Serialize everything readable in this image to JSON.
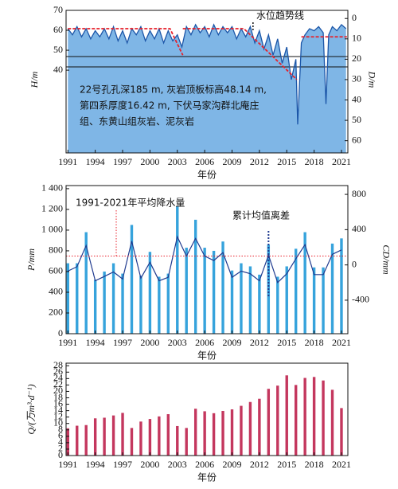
{
  "chart_data": [
    {
      "type": "area",
      "xlabel": "年份",
      "ylabel": "H/m",
      "y2label": "D/m",
      "xlim": [
        1990.8,
        2021.7
      ],
      "xticks": [
        1991,
        1994,
        1997,
        2000,
        2003,
        2006,
        2009,
        2012,
        2015,
        2018,
        2021
      ],
      "ylim": [
        -1.5,
        70
      ],
      "yticks": [
        40,
        50,
        60,
        70
      ],
      "y2lim": [
        66,
        -4
      ],
      "y2ticks": [
        0,
        10,
        20,
        30,
        40,
        50,
        60
      ],
      "fill": "#7fb6e6",
      "series": [
        {
          "color": "#1c56a8",
          "axis": "y2",
          "x": [
            1991,
            1991.5,
            1992,
            1992.5,
            1993,
            1993.5,
            1994,
            1994.5,
            1995,
            1995.5,
            1996,
            1996.5,
            1997,
            1997.5,
            1998,
            1998.5,
            1999,
            1999.5,
            2000,
            2000.5,
            2001,
            2001.5,
            2002,
            2002.5,
            2003,
            2003.5,
            2004,
            2004.5,
            2005,
            2005.5,
            2006,
            2006.5,
            2007,
            2007.5,
            2008,
            2008.5,
            2009,
            2009.5,
            2010,
            2010.5,
            2011,
            2011.5,
            2012,
            2012.5,
            2013,
            2013.5,
            2014,
            2014.5,
            2015,
            2015.5,
            2016,
            2016.2,
            2016.6,
            2017,
            2017.5,
            2018,
            2018.5,
            2019,
            2019.3,
            2019.6,
            2020,
            2020.5,
            2021,
            2021.5
          ],
          "values": [
            5,
            8,
            4,
            9,
            5,
            10,
            6,
            9,
            5,
            10,
            4,
            11,
            6,
            12,
            5,
            8,
            4,
            11,
            6,
            10,
            5,
            12,
            6,
            11,
            8,
            14,
            4,
            8,
            3,
            7,
            4,
            9,
            3,
            8,
            4,
            7,
            4,
            10,
            5,
            9,
            4,
            12,
            6,
            15,
            8,
            18,
            10,
            22,
            14,
            30,
            20,
            52,
            12,
            8,
            5,
            6,
            4,
            7,
            42,
            8,
            4,
            6,
            3,
            5
          ]
        },
        {
          "color": "#e8202a",
          "axis": "y2",
          "dash": true,
          "x": [
            1991,
            2002.2,
            2003.6,
            null,
            2003.6,
            2010.3,
            2016.1,
            null,
            2016.6,
            2021.6
          ],
          "values": [
            5,
            5,
            18,
            null,
            5,
            5,
            30,
            null,
            9,
            9
          ]
        }
      ],
      "annotations": [
        "水位趋势线",
        "22号孔孔深185 m, 灰岩顶板标高48.14 m,",
        "第四系厚度16.42 m, 下伏马家沟群北庵庄",
        "组、东黄山组灰岩、泥灰岩"
      ]
    },
    {
      "type": "bar",
      "xlabel": "年份",
      "ylabel": "P/mm",
      "y2label": "CD/mm",
      "xlim": [
        1990.8,
        2021.7
      ],
      "xticks": [
        1991,
        1994,
        1997,
        2000,
        2003,
        2006,
        2009,
        2012,
        2015,
        2018,
        2021
      ],
      "ylim": [
        0,
        1430
      ],
      "yticks": [
        0,
        200,
        400,
        600,
        800,
        {
          "value": 1000,
          "label": "1 000"
        },
        {
          "value": 1200,
          "label": "1 200"
        },
        {
          "value": 1400,
          "label": "1 400"
        }
      ],
      "y2lim": [
        -780,
        900
      ],
      "y2ticks": [
        -400,
        0,
        400,
        800
      ],
      "mean_line": {
        "value": 750,
        "color": "#e8202a"
      },
      "x": [
        1991,
        1992,
        1993,
        1994,
        1995,
        1996,
        1997,
        1998,
        1999,
        2000,
        2001,
        2002,
        2003,
        2004,
        2005,
        2006,
        2007,
        2008,
        2009,
        2010,
        2011,
        2012,
        2013,
        2014,
        2015,
        2016,
        2017,
        2018,
        2019,
        2020,
        2021
      ],
      "series": [
        {
          "color": "#36a3dc",
          "values": [
            680,
            680,
            980,
            520,
            600,
            680,
            580,
            1050,
            560,
            790,
            550,
            580,
            1230,
            830,
            1100,
            830,
            800,
            890,
            610,
            680,
            650,
            570,
            860,
            550,
            650,
            820,
            980,
            640,
            640,
            870,
            920
          ]
        },
        {
          "color": "#1f3a8f",
          "axis": "y2",
          "kind": "line",
          "values": [
            -70,
            -20,
            220,
            -180,
            -130,
            -80,
            -160,
            270,
            -150,
            30,
            -180,
            -140,
            320,
            100,
            300,
            100,
            50,
            140,
            -140,
            -70,
            -100,
            -180,
            110,
            -200,
            -100,
            70,
            230,
            -110,
            -110,
            120,
            170
          ]
        }
      ],
      "annotations": [
        "1991-2021年平均降水量",
        "累计均值离差"
      ]
    },
    {
      "type": "bar",
      "xlabel": "年份",
      "ylabel": "Q/(万m³·d⁻¹)",
      "xlim": [
        1990.8,
        2021.7
      ],
      "xticks": [
        1991,
        1994,
        1997,
        2000,
        2003,
        2006,
        2009,
        2012,
        2015,
        2018,
        2021
      ],
      "ylim": [
        0,
        28.8
      ],
      "yticks": [
        0,
        2,
        4,
        6,
        8,
        10,
        12,
        14,
        16,
        18,
        20,
        22,
        24,
        26,
        28
      ],
      "x": [
        1991,
        1992,
        1993,
        1994,
        1995,
        1996,
        1997,
        1998,
        1999,
        2000,
        2001,
        2002,
        2003,
        2004,
        2005,
        2006,
        2007,
        2008,
        2009,
        2010,
        2011,
        2012,
        2013,
        2014,
        2015,
        2016,
        2017,
        2018,
        2019,
        2020,
        2021
      ],
      "series": [
        {
          "color": "#c4375e",
          "values": [
            8.5,
            9.3,
            9.5,
            11.6,
            11.8,
            12.5,
            13.3,
            8.6,
            10.6,
            11.4,
            12.2,
            12.9,
            9.2,
            8.6,
            14.6,
            13.8,
            13.2,
            13.9,
            14.4,
            15.5,
            16.7,
            17.7,
            20.8,
            21.8,
            25,
            22,
            24.2,
            24.5,
            23.4,
            20.5,
            14.8
          ]
        }
      ]
    }
  ]
}
